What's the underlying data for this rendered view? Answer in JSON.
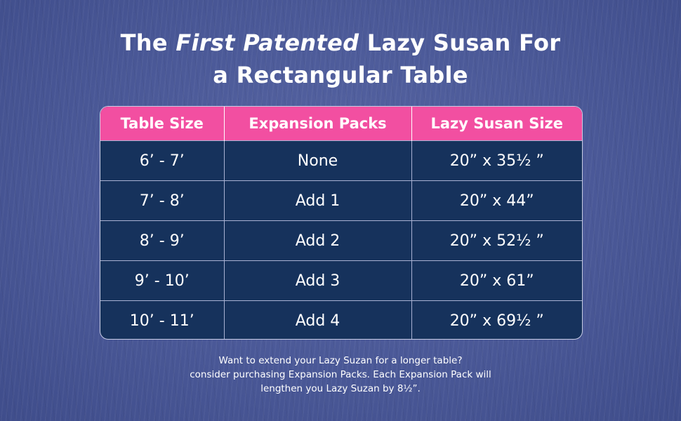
{
  "title": {
    "line1_pre": "The",
    "line1_emphasis": "First Patented",
    "line1_post": "Lazy Susan For",
    "line2": "a Rectangular Table"
  },
  "table": {
    "headers": [
      "Table Size",
      "Expansion Packs",
      "Lazy Susan Size"
    ],
    "rows": [
      [
        "6’ - 7’",
        "None",
        "20” x 35½ ”"
      ],
      [
        "7’ - 8’",
        "Add 1",
        "20” x 44”"
      ],
      [
        "8’ - 9’",
        "Add 2",
        "20” x 52½ ”"
      ],
      [
        "9’ - 10’",
        "Add 3",
        "20” x 61”"
      ],
      [
        "10’ - 11’",
        "Add 4",
        "20” x 69½ ”"
      ]
    ]
  },
  "note": {
    "line1": "Want to extend your Lazy Suzan for a longer table?",
    "line2": "consider purchasing Expansion Packs. Each Expansion Pack will",
    "line3": "lengthen you Lazy Suzan by 8½”."
  },
  "colors": {
    "background": "#4a5897",
    "header": "#f24fa1",
    "table_body": "#16325c",
    "text": "#ffffff"
  }
}
